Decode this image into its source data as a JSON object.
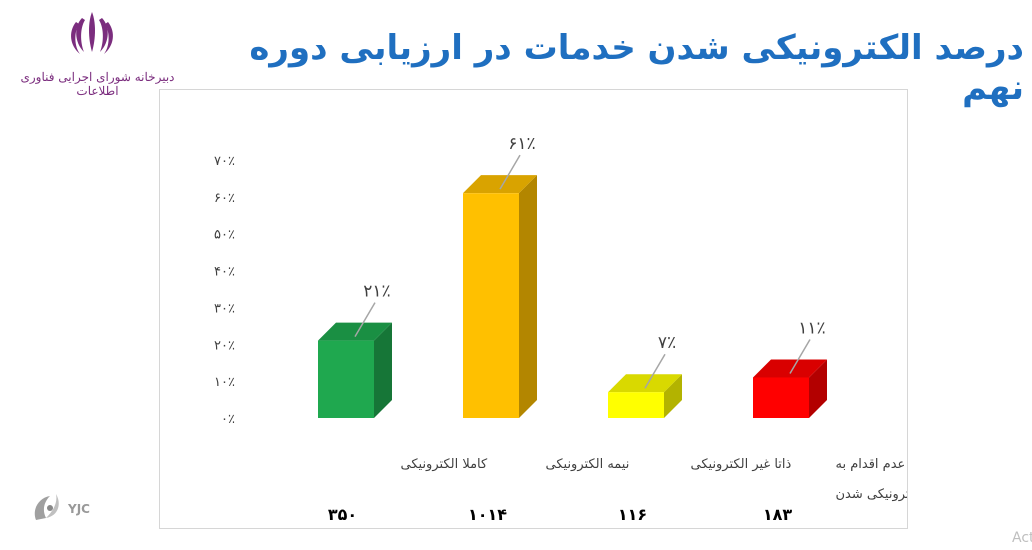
{
  "header": {
    "title": "درصد الکترونیکی شدن خدمات در ارزیابی دوره نهم",
    "logo_text": "دبیرخانه شورای اجرایی فناوری اطلاعات"
  },
  "watermark": {
    "text": "YJC",
    "corner_text": "Act"
  },
  "colors": {
    "title": "#1f6fc0",
    "logo": "#7b2d7e"
  },
  "chart_data": {
    "type": "bar",
    "title": "",
    "xlabel": "",
    "ylabel": "",
    "ylim": [
      0,
      70
    ],
    "y_ticks": [
      "۰٪",
      "۱۰٪",
      "۲۰٪",
      "۳۰٪",
      "۴۰٪",
      "۵۰٪",
      "۶۰٪",
      "۷۰٪"
    ],
    "categories": [
      {
        "label": [
          "کاملا الکترونیکی"
        ],
        "value": 21,
        "data_label": "۲۱٪",
        "count": "۳۵۰",
        "color": "#1fa84f"
      },
      {
        "label": [
          "نیمه الکترونیکی"
        ],
        "value": 61,
        "data_label": "۶۱٪",
        "count": "۱۰۱۴",
        "color": "#ffc000"
      },
      {
        "label": [
          "ذاتا غیر الکترونیکی"
        ],
        "value": 7,
        "data_label": "۷٪",
        "count": "۱۱۶",
        "color": "#ffff00"
      },
      {
        "label": [
          "عدم اقدام به",
          "الکترونیکی شدن"
        ],
        "value": 11,
        "data_label": "۱۱٪",
        "count": "۱۸۳",
        "color": "#ff0000"
      }
    ],
    "grid": false,
    "legend": "none"
  }
}
